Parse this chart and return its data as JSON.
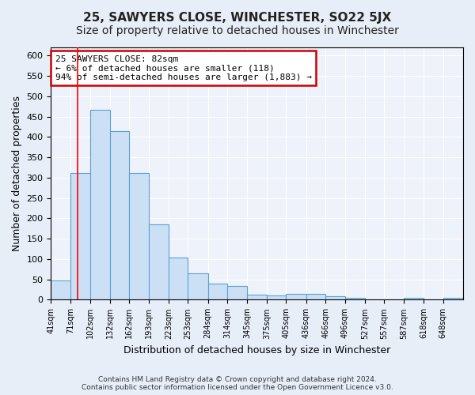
{
  "title": "25, SAWYERS CLOSE, WINCHESTER, SO22 5JX",
  "subtitle": "Size of property relative to detached houses in Winchester",
  "xlabel": "Distribution of detached houses by size in Winchester",
  "ylabel": "Number of detached properties",
  "footer_line1": "Contains HM Land Registry data © Crown copyright and database right 2024.",
  "footer_line2": "Contains public sector information licensed under the Open Government Licence v3.0.",
  "bar_edges": [
    41,
    71,
    102,
    132,
    162,
    193,
    223,
    253,
    284,
    314,
    345,
    375,
    405,
    436,
    466,
    496,
    527,
    557,
    587,
    618,
    648,
    679
  ],
  "bar_heights": [
    47,
    312,
    466,
    415,
    312,
    185,
    104,
    65,
    40,
    33,
    13,
    10,
    14,
    15,
    9,
    5,
    1,
    1,
    5,
    1,
    5
  ],
  "bar_color": "#cce0f5",
  "bar_edge_color": "#5a9fd4",
  "red_line_x": 82,
  "annotation_text_line1": "25 SAWYERS CLOSE: 82sqm",
  "annotation_text_line2": "← 6% of detached houses are smaller (118)",
  "annotation_text_line3": "94% of semi-detached houses are larger (1,883) →",
  "annotation_box_color": "#ffffff",
  "annotation_border_color": "#cc0000",
  "ylim": [
    0,
    620
  ],
  "yticks": [
    0,
    50,
    100,
    150,
    200,
    250,
    300,
    350,
    400,
    450,
    500,
    550,
    600
  ],
  "tick_labels": [
    "41sqm",
    "71sqm",
    "102sqm",
    "132sqm",
    "162sqm",
    "193sqm",
    "223sqm",
    "253sqm",
    "284sqm",
    "314sqm",
    "345sqm",
    "375sqm",
    "405sqm",
    "436sqm",
    "466sqm",
    "496sqm",
    "527sqm",
    "557sqm",
    "587sqm",
    "618sqm",
    "648sqm"
  ],
  "bg_color": "#e8eef8",
  "plot_bg_color": "#eef2fb",
  "grid_color": "#ffffff",
  "title_fontsize": 11,
  "subtitle_fontsize": 10,
  "xlabel_fontsize": 9,
  "ylabel_fontsize": 9
}
